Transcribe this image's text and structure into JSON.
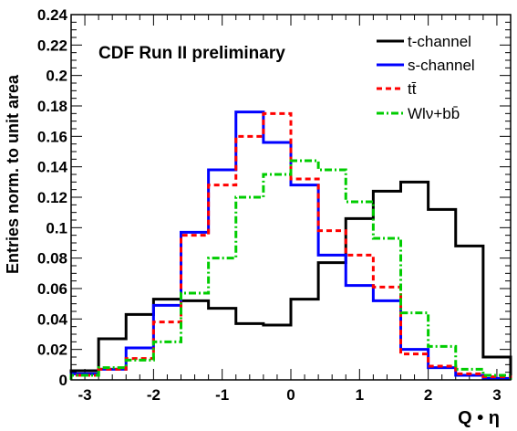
{
  "chart_data": {
    "type": "histogram-step",
    "title": "CDF Run II preliminary",
    "xlabel": "Q • η",
    "ylabel": "Entries norm. to unit area",
    "xlim": [
      -3.2,
      3.2
    ],
    "ylim": [
      0,
      0.24
    ],
    "bin_edges": [
      -3.2,
      -2.8,
      -2.4,
      -2.0,
      -1.6,
      -1.2,
      -0.8,
      -0.4,
      0.0,
      0.4,
      0.8,
      1.2,
      1.6,
      2.0,
      2.4,
      2.8,
      3.2
    ],
    "x_ticks": [
      -3,
      -2,
      -1,
      0,
      1,
      2,
      3
    ],
    "x_tick_labels": [
      "-3",
      "-2",
      "-1",
      "0",
      "1",
      "2",
      "3"
    ],
    "y_ticks": [
      0,
      0.02,
      0.04,
      0.06,
      0.08,
      0.1,
      0.12,
      0.14,
      0.16,
      0.18,
      0.2,
      0.22,
      0.24
    ],
    "y_tick_labels": [
      "0",
      "0.02",
      "0.04",
      "0.06",
      "0.08",
      "0.1",
      "0.12",
      "0.14",
      "0.16",
      "0.18",
      "0.2",
      "0.22",
      "0.24"
    ],
    "legend_position": "top-right",
    "series": [
      {
        "name": "t-channel",
        "color": "#000000",
        "style": "solid",
        "values": [
          0.006,
          0.027,
          0.043,
          0.053,
          0.052,
          0.047,
          0.037,
          0.036,
          0.053,
          0.077,
          0.106,
          0.124,
          0.13,
          0.112,
          0.088,
          0.015
        ]
      },
      {
        "name": "s-channel",
        "color": "#0000ff",
        "style": "solid",
        "values": [
          0.004,
          0.007,
          0.021,
          0.049,
          0.097,
          0.138,
          0.176,
          0.156,
          0.128,
          0.082,
          0.062,
          0.052,
          0.02,
          0.008,
          0.003,
          0.001
        ]
      },
      {
        "name": "tt̄",
        "color": "#ff0000",
        "style": "dashed",
        "values": [
          0.003,
          0.007,
          0.014,
          0.038,
          0.095,
          0.128,
          0.16,
          0.175,
          0.132,
          0.098,
          0.082,
          0.061,
          0.017,
          0.009,
          0.004,
          0.002
        ]
      },
      {
        "name": "Wlν+bb̄",
        "color": "#00cc00",
        "style": "dashdot",
        "values": [
          0.003,
          0.008,
          0.013,
          0.025,
          0.057,
          0.08,
          0.12,
          0.135,
          0.144,
          0.138,
          0.117,
          0.093,
          0.044,
          0.022,
          0.007,
          0.003
        ]
      }
    ]
  }
}
